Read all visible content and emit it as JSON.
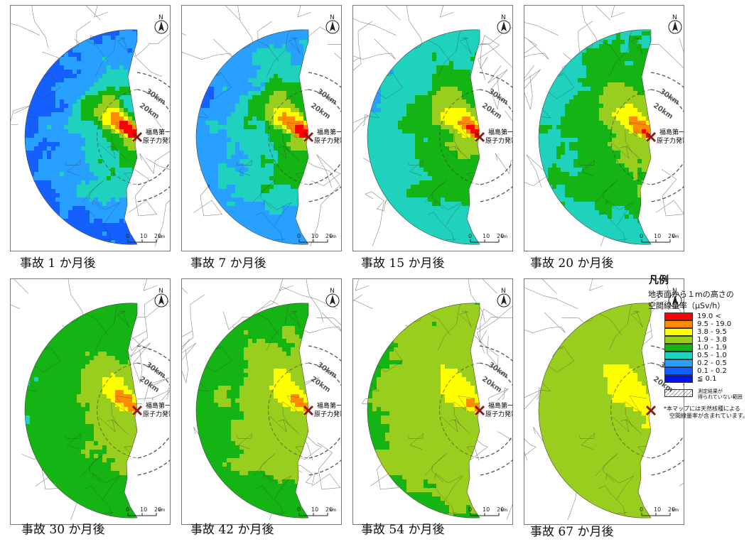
{
  "panels": [
    {
      "caption": "事故 1 か月後",
      "level": 1.0,
      "show_plant_label": true
    },
    {
      "caption": "事故 7 か月後",
      "level": 0.85,
      "show_plant_label": true
    },
    {
      "caption": "事故 15 か月後",
      "level": 0.65,
      "show_plant_label": true
    },
    {
      "caption": "事故 20 か月後",
      "level": 0.55,
      "show_plant_label": true
    },
    {
      "caption": "事故 30 か月後",
      "level": 0.45,
      "show_plant_label": true
    },
    {
      "caption": "事故 42 か月後",
      "level": 0.35,
      "show_plant_label": true
    },
    {
      "caption": "事故 54 か月後",
      "level": 0.28,
      "show_plant_label": true
    },
    {
      "caption": "事故 67 か月後",
      "level": 0.2,
      "show_plant_label": false
    }
  ],
  "map_labels": {
    "plant_line1": "福島第一",
    "plant_line2": "原子力発電所",
    "ring_30": "30km",
    "ring_20": "20km",
    "north": "N",
    "scale_ticks": [
      "0",
      "10",
      "20"
    ],
    "scale_unit": "km"
  },
  "legend": {
    "title": "凡例",
    "subtitle_1": "地表面から１mの高さの",
    "subtitle_2": "空間線量率（μSv/h）",
    "items": [
      {
        "label": "19.0 <",
        "color": "#ff0000"
      },
      {
        "label": "9.5 - 19.0",
        "color": "#ff8c00"
      },
      {
        "label": "3.8 - 9.5",
        "color": "#ffff00"
      },
      {
        "label": "1.9 - 3.8",
        "color": "#9ace1e"
      },
      {
        "label": "1.0 - 1.9",
        "color": "#14b414"
      },
      {
        "label": "0.5 - 1.0",
        "color": "#1ed2be"
      },
      {
        "label": "0.2 - 0.5",
        "color": "#28a0ff"
      },
      {
        "label": "0.1 - 0.2",
        "color": "#1460ff"
      },
      {
        "label": "≦ 0.1",
        "color": "#0014e6"
      }
    ],
    "hatch_note_1": "測定結果が",
    "hatch_note_2": "得られていない範囲",
    "footnote_1": "*本マップには天然核種による",
    "footnote_2": "空間線量率が含まれています。"
  }
}
